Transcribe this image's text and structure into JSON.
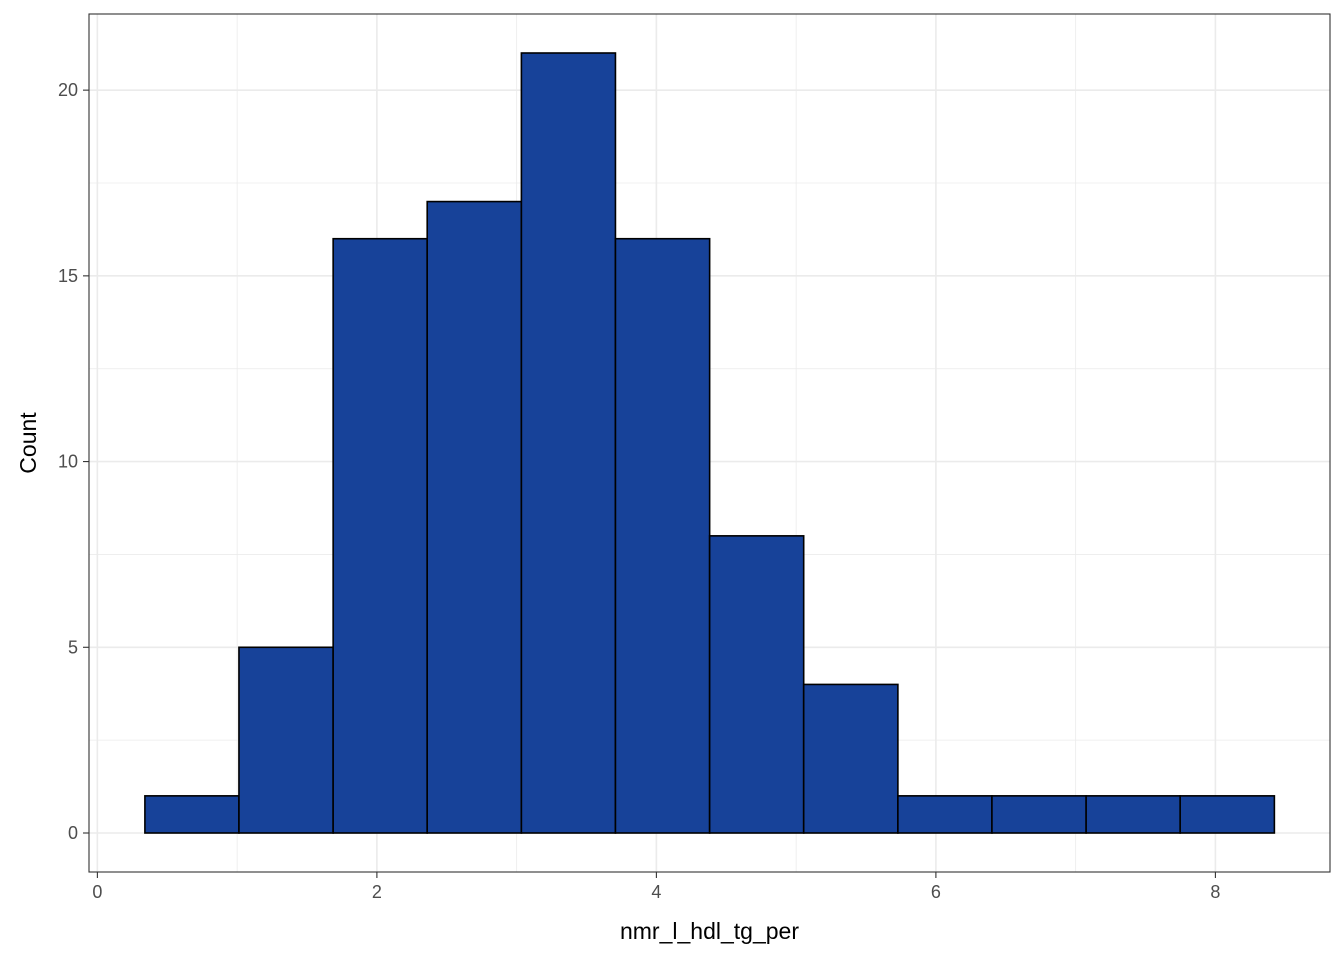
{
  "chart_data": {
    "type": "bar",
    "xlabel": "nmr_l_hdl_tg_per",
    "ylabel": "Count",
    "bin_edges": [
      0.34,
      1.013,
      1.687,
      2.36,
      3.034,
      3.707,
      4.381,
      5.054,
      5.728,
      6.401,
      7.075,
      7.748,
      8.422
    ],
    "values": [
      1,
      5,
      16,
      17,
      21,
      16,
      8,
      4,
      1,
      1,
      1,
      1
    ],
    "xlim": [
      -0.06,
      8.82
    ],
    "ylim": [
      -1.05,
      22.05
    ],
    "xticks": [
      0,
      2,
      4,
      6,
      8
    ],
    "yticks": [
      0,
      5,
      10,
      15,
      20
    ],
    "xticks_minor": [
      1,
      3,
      5,
      7
    ],
    "yticks_minor": [
      2.5,
      7.5,
      12.5,
      17.5
    ],
    "grid": true,
    "bar_fill": "#174299",
    "bar_stroke": "#000000",
    "grid_color": "#ebebeb",
    "panel_border": "#333333"
  }
}
